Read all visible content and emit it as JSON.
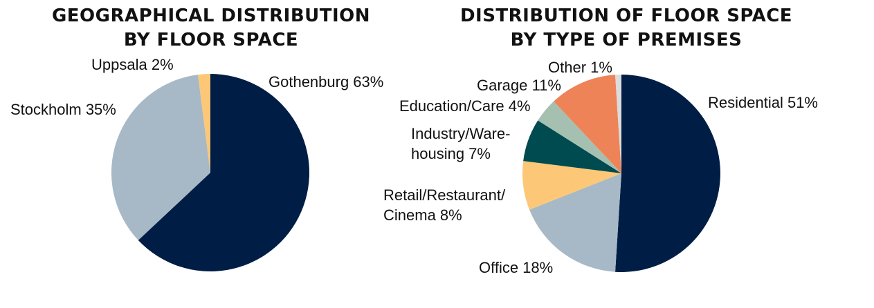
{
  "chart_data": [
    {
      "type": "pie",
      "title": [
        "GEOGRAPHICAL DISTRIBUTION",
        "BY FLOOR SPACE"
      ],
      "slices": [
        {
          "label": [
            "Gothenburg 63%"
          ],
          "value": 63,
          "color": "#001e45"
        },
        {
          "label": [
            "Stockholm 35%"
          ],
          "value": 35,
          "color": "#a7b9c6"
        },
        {
          "label": [
            "Uppsala 2%"
          ],
          "value": 2,
          "color": "#fcc877"
        }
      ]
    },
    {
      "type": "pie",
      "title": [
        "DISTRIBUTION OF FLOOR SPACE",
        "BY TYPE OF PREMISES"
      ],
      "slices": [
        {
          "label": [
            "Residential 51%"
          ],
          "value": 51,
          "color": "#001e45"
        },
        {
          "label": [
            "Office 18%"
          ],
          "value": 18,
          "color": "#a7b9c6"
        },
        {
          "label": [
            "Retail/Restaurant/",
            "Cinema 8%"
          ],
          "value": 8,
          "color": "#fcc877"
        },
        {
          "label": [
            "Industry/Ware-",
            "housing 7%"
          ],
          "value": 7,
          "color": "#004b4f"
        },
        {
          "label": [
            "Education/Care 4%"
          ],
          "value": 4,
          "color": "#a5c0b1"
        },
        {
          "label": [
            "Garage 11%"
          ],
          "value": 11,
          "color": "#ef8358"
        },
        {
          "label": [
            "Other 1%"
          ],
          "value": 1,
          "color": "#dcdcdc"
        }
      ]
    }
  ]
}
